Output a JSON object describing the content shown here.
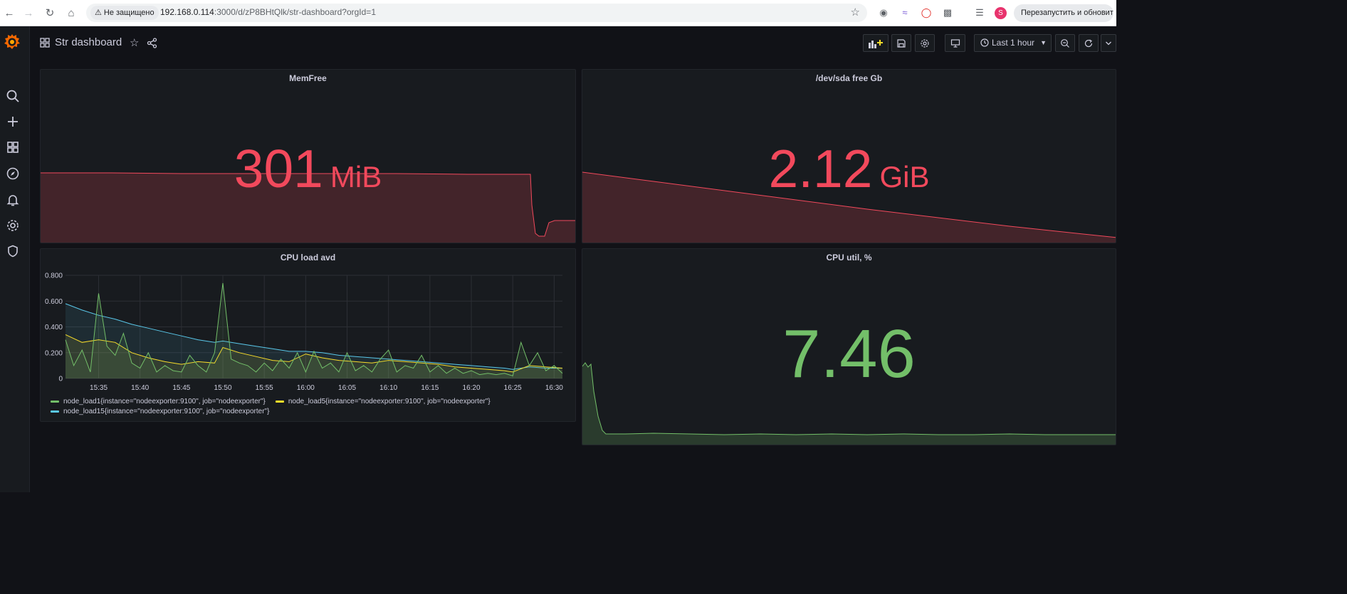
{
  "browser": {
    "security_label": "Не защищено",
    "url_host": "192.168.0.114",
    "url_path": ":3000/d/zP8BHtQlk/str-dashboard?orgId=1",
    "profile_initial": "S",
    "restart_label": "Перезапустить и обновить"
  },
  "dashboard": {
    "title": "Str dashboard",
    "time_range": "Last 1 hour"
  },
  "panels": {
    "memfree": {
      "title": "MemFree",
      "value": "301",
      "unit": "MiB",
      "color": "#f2495c"
    },
    "sda": {
      "title": "/dev/sda free Gb",
      "value": "2.12",
      "unit": "GiB",
      "color": "#f2495c"
    },
    "cpuutil": {
      "title": "CPU util, %",
      "value": "7.46",
      "unit": "",
      "color": "#73bf69"
    },
    "cpuload": {
      "title": "CPU load avd"
    }
  },
  "chart_data": {
    "type": "line",
    "title": "CPU load avd",
    "xlabel": "",
    "ylabel": "",
    "ylim": [
      0,
      0.8
    ],
    "yticks": [
      "0",
      "0.200",
      "0.400",
      "0.600",
      "0.800"
    ],
    "xticks": [
      "15:35",
      "15:40",
      "15:45",
      "15:50",
      "15:55",
      "16:00",
      "16:05",
      "16:10",
      "16:15",
      "16:20",
      "16:25",
      "16:30"
    ],
    "x_minutes_start": "15:31",
    "x_minutes_end": "16:31",
    "grid": true,
    "legend_position": "bottom",
    "series": [
      {
        "name": "node_load1{instance=\"nodeexporter:9100\", job=\"nodeexporter\"}",
        "color": "#73bf69",
        "x": [
          "15:31",
          "15:32",
          "15:33",
          "15:34",
          "15:35",
          "15:36",
          "15:37",
          "15:38",
          "15:39",
          "15:40",
          "15:41",
          "15:42",
          "15:43",
          "15:44",
          "15:45",
          "15:46",
          "15:47",
          "15:48",
          "15:49",
          "15:50",
          "15:51",
          "15:52",
          "15:53",
          "15:54",
          "15:55",
          "15:56",
          "15:57",
          "15:58",
          "15:59",
          "16:00",
          "16:01",
          "16:02",
          "16:03",
          "16:04",
          "16:05",
          "16:06",
          "16:07",
          "16:08",
          "16:09",
          "16:10",
          "16:11",
          "16:12",
          "16:13",
          "16:14",
          "16:15",
          "16:16",
          "16:17",
          "16:18",
          "16:19",
          "16:20",
          "16:21",
          "16:22",
          "16:23",
          "16:24",
          "16:25",
          "16:26",
          "16:27",
          "16:28",
          "16:29",
          "16:30",
          "16:31"
        ],
        "values": [
          0.3,
          0.1,
          0.22,
          0.05,
          0.66,
          0.25,
          0.18,
          0.35,
          0.12,
          0.08,
          0.2,
          0.05,
          0.1,
          0.06,
          0.05,
          0.18,
          0.1,
          0.05,
          0.2,
          0.74,
          0.15,
          0.12,
          0.1,
          0.05,
          0.12,
          0.06,
          0.15,
          0.08,
          0.2,
          0.05,
          0.21,
          0.08,
          0.12,
          0.05,
          0.2,
          0.06,
          0.1,
          0.05,
          0.15,
          0.22,
          0.05,
          0.1,
          0.08,
          0.18,
          0.05,
          0.1,
          0.04,
          0.08,
          0.04,
          0.06,
          0.03,
          0.04,
          0.03,
          0.04,
          0.02,
          0.28,
          0.1,
          0.2,
          0.06,
          0.1,
          0.04
        ]
      },
      {
        "name": "node_load5{instance=\"nodeexporter:9100\", job=\"nodeexporter\"}",
        "color": "#fade2a",
        "x": [
          "15:31",
          "15:33",
          "15:35",
          "15:37",
          "15:39",
          "15:41",
          "15:43",
          "15:45",
          "15:47",
          "15:49",
          "15:50",
          "15:52",
          "15:54",
          "15:56",
          "15:58",
          "16:00",
          "16:02",
          "16:04",
          "16:06",
          "16:08",
          "16:10",
          "16:12",
          "16:14",
          "16:16",
          "16:18",
          "16:20",
          "16:22",
          "16:24",
          "16:25",
          "16:27",
          "16:29",
          "16:31"
        ],
        "values": [
          0.34,
          0.28,
          0.3,
          0.28,
          0.2,
          0.16,
          0.13,
          0.11,
          0.13,
          0.12,
          0.24,
          0.2,
          0.17,
          0.14,
          0.13,
          0.19,
          0.16,
          0.14,
          0.13,
          0.12,
          0.14,
          0.13,
          0.12,
          0.11,
          0.09,
          0.08,
          0.07,
          0.06,
          0.05,
          0.1,
          0.09,
          0.08
        ]
      },
      {
        "name": "node_load15{instance=\"nodeexporter:9100\", job=\"nodeexporter\"}",
        "color": "#5ac8ea",
        "x": [
          "15:31",
          "15:33",
          "15:35",
          "15:37",
          "15:39",
          "15:41",
          "15:43",
          "15:45",
          "15:47",
          "15:49",
          "15:50",
          "15:52",
          "15:54",
          "15:56",
          "15:58",
          "16:00",
          "16:02",
          "16:04",
          "16:06",
          "16:08",
          "16:10",
          "16:12",
          "16:14",
          "16:16",
          "16:18",
          "16:20",
          "16:22",
          "16:24",
          "16:25",
          "16:27",
          "16:29",
          "16:31"
        ],
        "values": [
          0.58,
          0.53,
          0.49,
          0.46,
          0.42,
          0.39,
          0.36,
          0.33,
          0.3,
          0.28,
          0.29,
          0.27,
          0.25,
          0.23,
          0.21,
          0.21,
          0.2,
          0.18,
          0.17,
          0.16,
          0.15,
          0.14,
          0.13,
          0.12,
          0.11,
          0.1,
          0.09,
          0.08,
          0.07,
          0.09,
          0.08,
          0.08
        ]
      }
    ]
  }
}
